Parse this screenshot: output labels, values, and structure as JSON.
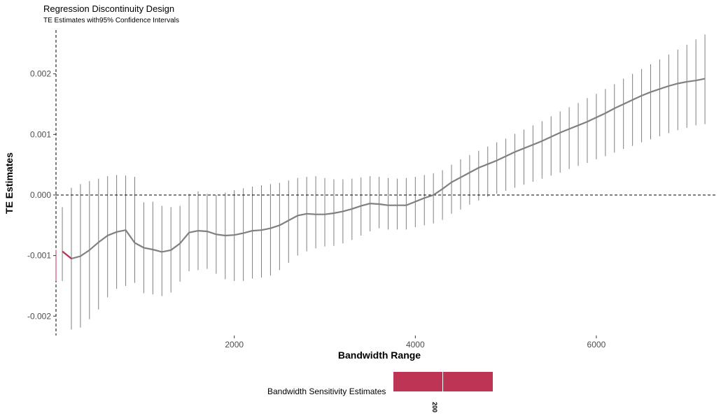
{
  "chart_data": {
    "type": "line",
    "title": "Regression Discontinuity Design",
    "subtitle": "TE Estimates with95% Confidence Intervals",
    "xlabel": "Bandwidth Range",
    "ylabel": "TE Estimates",
    "xlim": [
      30,
      7300
    ],
    "ylim": [
      -0.00232,
      0.0027
    ],
    "x_ticks": [
      2000,
      4000,
      6000
    ],
    "x_tick_labels": [
      "2000",
      "4000",
      "6000"
    ],
    "y_ticks": [
      -0.002,
      -0.001,
      0.0,
      0.001,
      0.002
    ],
    "y_tick_labels": [
      "-0.002",
      "-0.001",
      "0.000",
      "0.001",
      "0.002"
    ],
    "reference_lines": {
      "vertical_x": 30,
      "horizontal_y": 0.0
    },
    "grid": false,
    "colors": {
      "line": "#808080",
      "errorbar": "#7f7f7f",
      "highlight": "#be3455",
      "ref": "#000000"
    },
    "series": [
      {
        "x": [
          100,
          200,
          300,
          400,
          500,
          600,
          700,
          800,
          900,
          1000,
          1100,
          1200,
          1300,
          1400,
          1500,
          1600,
          1700,
          1800,
          1900,
          2000,
          2100,
          2200,
          2300,
          2400,
          2500,
          2600,
          2700,
          2800,
          2900,
          3000,
          3100,
          3200,
          3300,
          3400,
          3500,
          3600,
          3700,
          3800,
          3900,
          4000,
          4100,
          4200,
          4300,
          4400,
          4500,
          4600,
          4700,
          4800,
          4900,
          5000,
          5100,
          5200,
          5300,
          5400,
          5500,
          5600,
          5700,
          5800,
          5900,
          6000,
          6100,
          6200,
          6300,
          6400,
          6500,
          6600,
          6700,
          6800,
          6900,
          7000,
          7100,
          7200
        ],
        "y": [
          -0.00093,
          -0.00105,
          -0.00101,
          -0.00091,
          -0.00078,
          -0.00067,
          -0.00061,
          -0.00058,
          -0.00079,
          -0.00087,
          -0.0009,
          -0.00094,
          -0.00091,
          -0.0008,
          -0.00062,
          -0.00059,
          -0.0006,
          -0.00065,
          -0.00067,
          -0.00066,
          -0.00063,
          -0.00059,
          -0.00058,
          -0.00055,
          -0.0005,
          -0.00042,
          -0.00034,
          -0.00031,
          -0.00032,
          -0.00032,
          -0.0003,
          -0.00027,
          -0.00023,
          -0.00018,
          -0.00014,
          -0.00015,
          -0.00017,
          -0.00017,
          -0.00017,
          -0.00011,
          -5e-05,
          0.0,
          0.0001,
          0.00021,
          0.00029,
          0.00037,
          0.00045,
          0.00051,
          0.00057,
          0.00064,
          0.00071,
          0.00077,
          0.00083,
          0.00089,
          0.00096,
          0.00103,
          0.00109,
          0.00115,
          0.00121,
          0.00128,
          0.00135,
          0.00143,
          0.0015,
          0.00157,
          0.00164,
          0.0017,
          0.00175,
          0.0018,
          0.00184,
          0.00187,
          0.00189,
          0.00192
        ],
        "lower": [
          -0.00142,
          -0.00222,
          -0.00219,
          -0.00205,
          -0.00189,
          -0.00169,
          -0.00155,
          -0.0015,
          -0.00145,
          -0.00162,
          -0.00164,
          -0.00167,
          -0.00161,
          -0.00143,
          -0.00126,
          -0.00124,
          -0.00122,
          -0.0013,
          -0.00139,
          -0.00142,
          -0.00142,
          -0.00138,
          -0.00136,
          -0.00133,
          -0.00124,
          -0.00112,
          -0.001,
          -0.00093,
          -0.00088,
          -0.00085,
          -0.00084,
          -0.0008,
          -0.00074,
          -0.00067,
          -0.0006,
          -0.00055,
          -0.00057,
          -0.00057,
          -0.00057,
          -0.00053,
          -0.0005,
          -0.00047,
          -0.00041,
          -0.00031,
          -0.00024,
          -0.00016,
          -9e-05,
          -3e-05,
          2e-05,
          7e-05,
          0.00012,
          0.00017,
          0.00022,
          0.00027,
          0.00032,
          0.00037,
          0.00043,
          0.00048,
          0.00053,
          0.00059,
          0.00064,
          0.0007,
          0.00076,
          0.00081,
          0.00087,
          0.00092,
          0.00097,
          0.00102,
          0.00107,
          0.00111,
          0.00115,
          0.00117
        ],
        "upper": [
          -0.0002,
          0.00012,
          0.00018,
          0.00023,
          0.00027,
          0.00031,
          0.00033,
          0.00032,
          0.0003,
          -0.00012,
          -0.00011,
          -0.00018,
          -0.0002,
          -0.00018,
          2e-05,
          6e-05,
          2e-05,
          0.0,
          4e-05,
          8e-05,
          0.00011,
          0.00014,
          0.00016,
          0.00018,
          0.0002,
          0.00024,
          0.00028,
          0.0003,
          0.00031,
          0.00028,
          0.00026,
          0.00026,
          0.00027,
          0.00029,
          0.00031,
          0.0003,
          0.00028,
          0.00027,
          0.00028,
          0.0003,
          0.00033,
          0.00036,
          0.00041,
          0.0005,
          0.00059,
          0.00066,
          0.00073,
          0.0008,
          0.00087,
          0.00093,
          0.00101,
          0.00108,
          0.00115,
          0.00122,
          0.0013,
          0.00138,
          0.00145,
          0.00152,
          0.0016,
          0.00167,
          0.00175,
          0.00183,
          0.00192,
          0.002,
          0.00208,
          0.00216,
          0.00224,
          0.00232,
          0.0024,
          0.00248,
          0.00257,
          0.00265
        ]
      }
    ],
    "legend": {
      "label": "Bandwidth Sensitivity Estimates",
      "tick_label": "200",
      "position": "bottom"
    }
  }
}
